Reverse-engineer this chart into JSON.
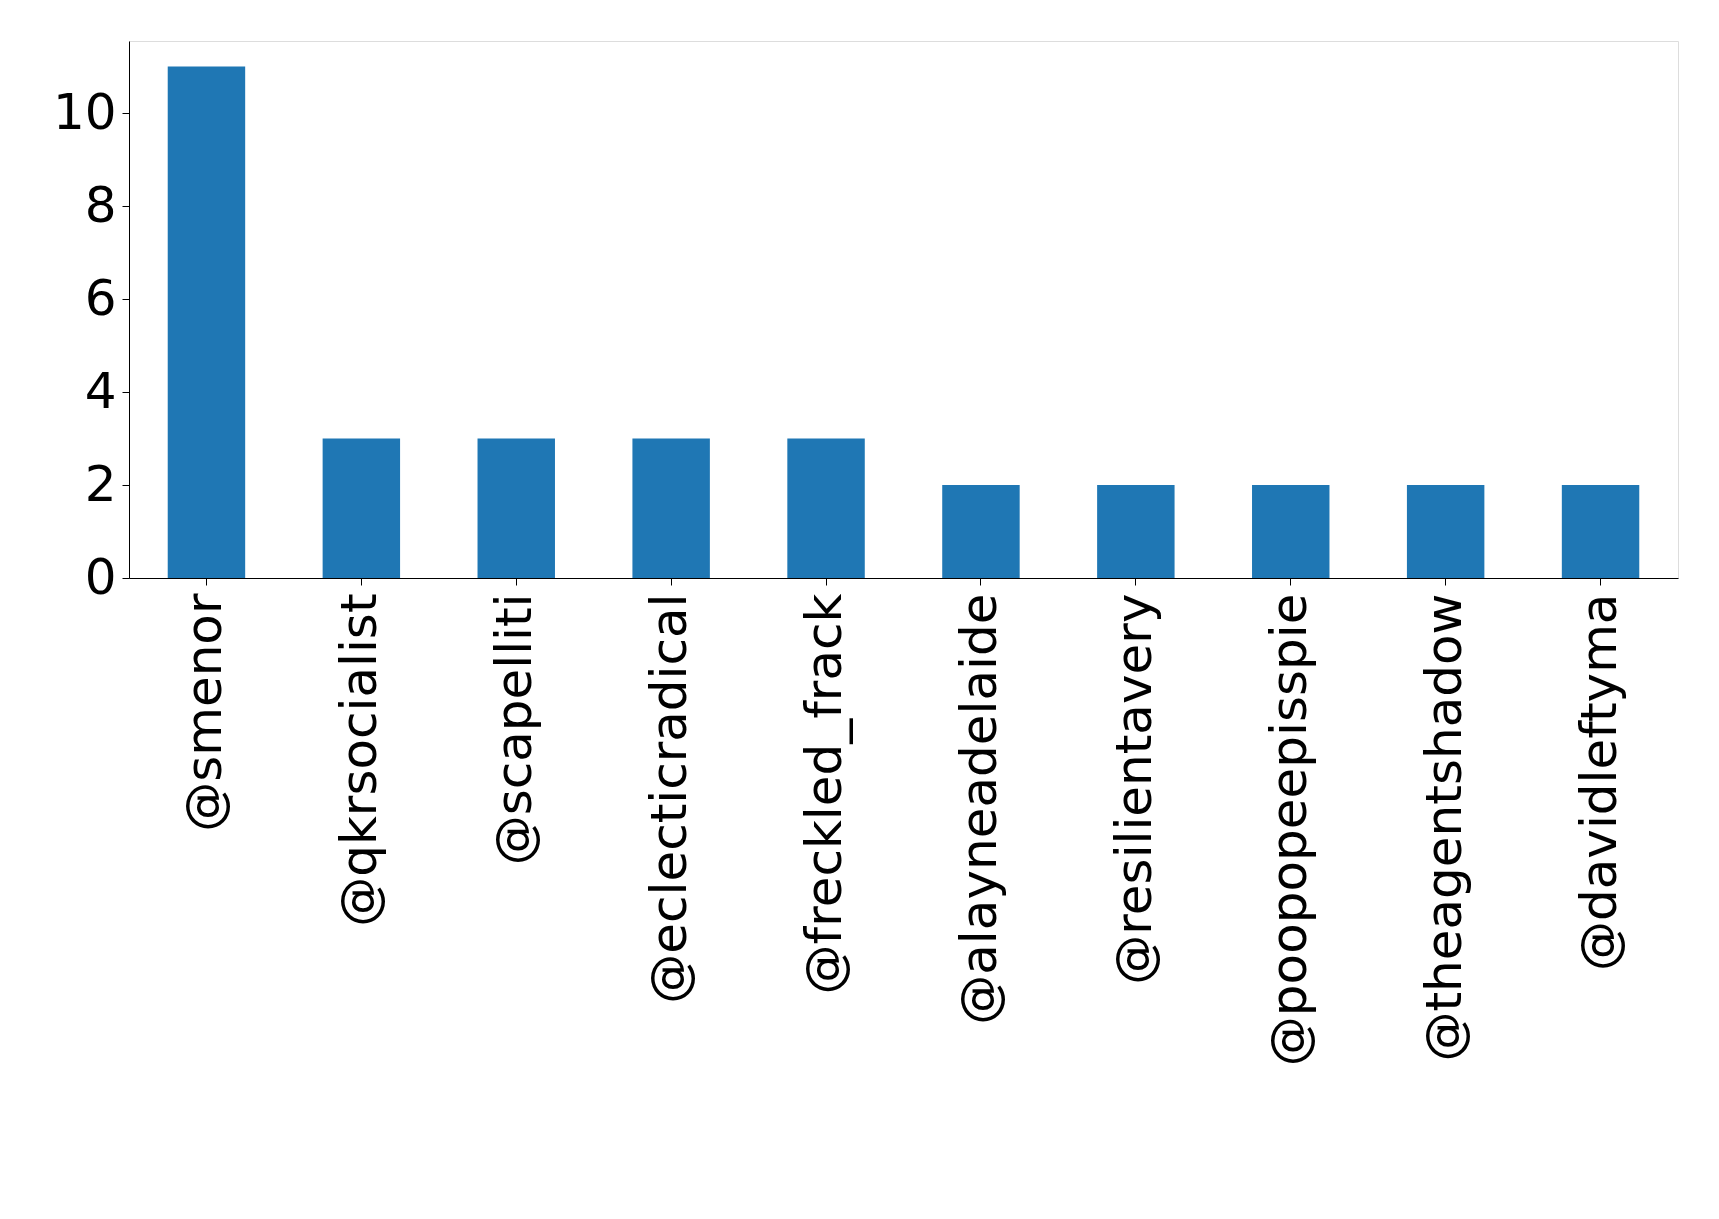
{
  "chart_data": {
    "type": "bar",
    "categories": [
      "@smenor",
      "@qkrsocialist",
      "@scapelliti",
      "@eclecticradical",
      "@freckled_frack",
      "@alayneadelaide",
      "@resilientavery",
      "@poopopeepisspie",
      "@theagentshadow",
      "@davidleftyma"
    ],
    "values": [
      11,
      3,
      3,
      3,
      3,
      2,
      2,
      2,
      2,
      2
    ],
    "color": "#1f77b4",
    "ylim": [
      0,
      11.55
    ],
    "yticks": [
      0,
      2,
      4,
      6,
      8,
      10
    ],
    "grid": false
  }
}
